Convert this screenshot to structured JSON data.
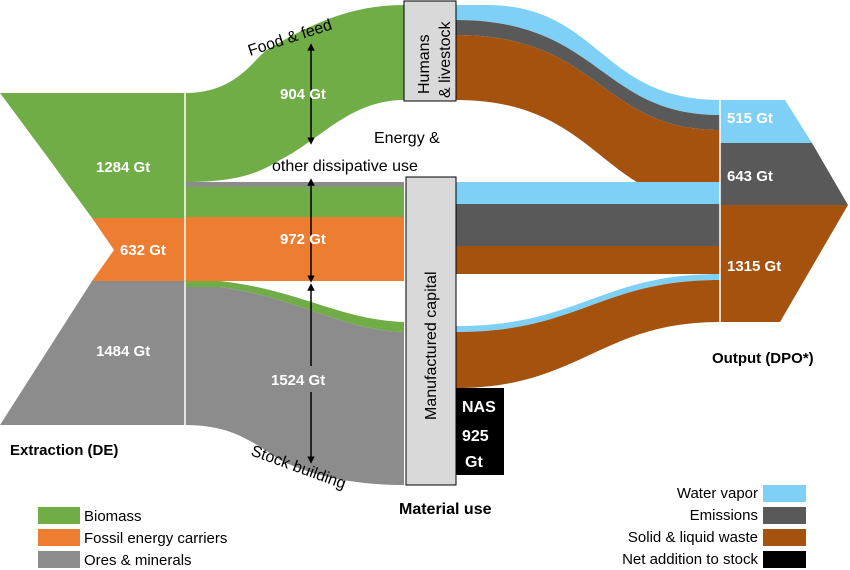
{
  "extraction": {
    "title": "Extraction (DE)",
    "biomass": "1284 Gt",
    "fossil": "632 Gt",
    "ores": "1484 Gt"
  },
  "flows": {
    "food_feed_label": "Food & feed",
    "food_feed_value": "904 Gt",
    "energy_label_line1": "Energy &",
    "energy_label_line2": "other dissipative use",
    "energy_value": "972 Gt",
    "stock_label": "Stock building",
    "stock_value": "1524 Gt"
  },
  "nodes": {
    "humans_line1": "Humans",
    "humans_line2": "& livestock",
    "manufactured_capital": "Manufactured capital",
    "material_use": "Material use",
    "nas_line1": "NAS",
    "nas_line2": "925",
    "nas_line3": "Gt"
  },
  "output": {
    "title": "Output (DPO*)",
    "water_vapor": "515 Gt",
    "emissions": "643 Gt",
    "solid_waste": "1315 Gt"
  },
  "legend_left": [
    {
      "label": "Biomass",
      "color": "#70ad47"
    },
    {
      "label": "Fossil energy carriers",
      "color": "#ed7d31"
    },
    {
      "label": "Ores & minerals",
      "color": "#8c8c8c"
    }
  ],
  "legend_right": [
    {
      "label": "Water vapor",
      "color": "#7fd0f6"
    },
    {
      "label": "Emissions",
      "color": "#595959"
    },
    {
      "label": "Solid & liquid waste",
      "color": "#a5520f"
    },
    {
      "label": "Net addition to stock",
      "color": "#000000"
    }
  ]
}
